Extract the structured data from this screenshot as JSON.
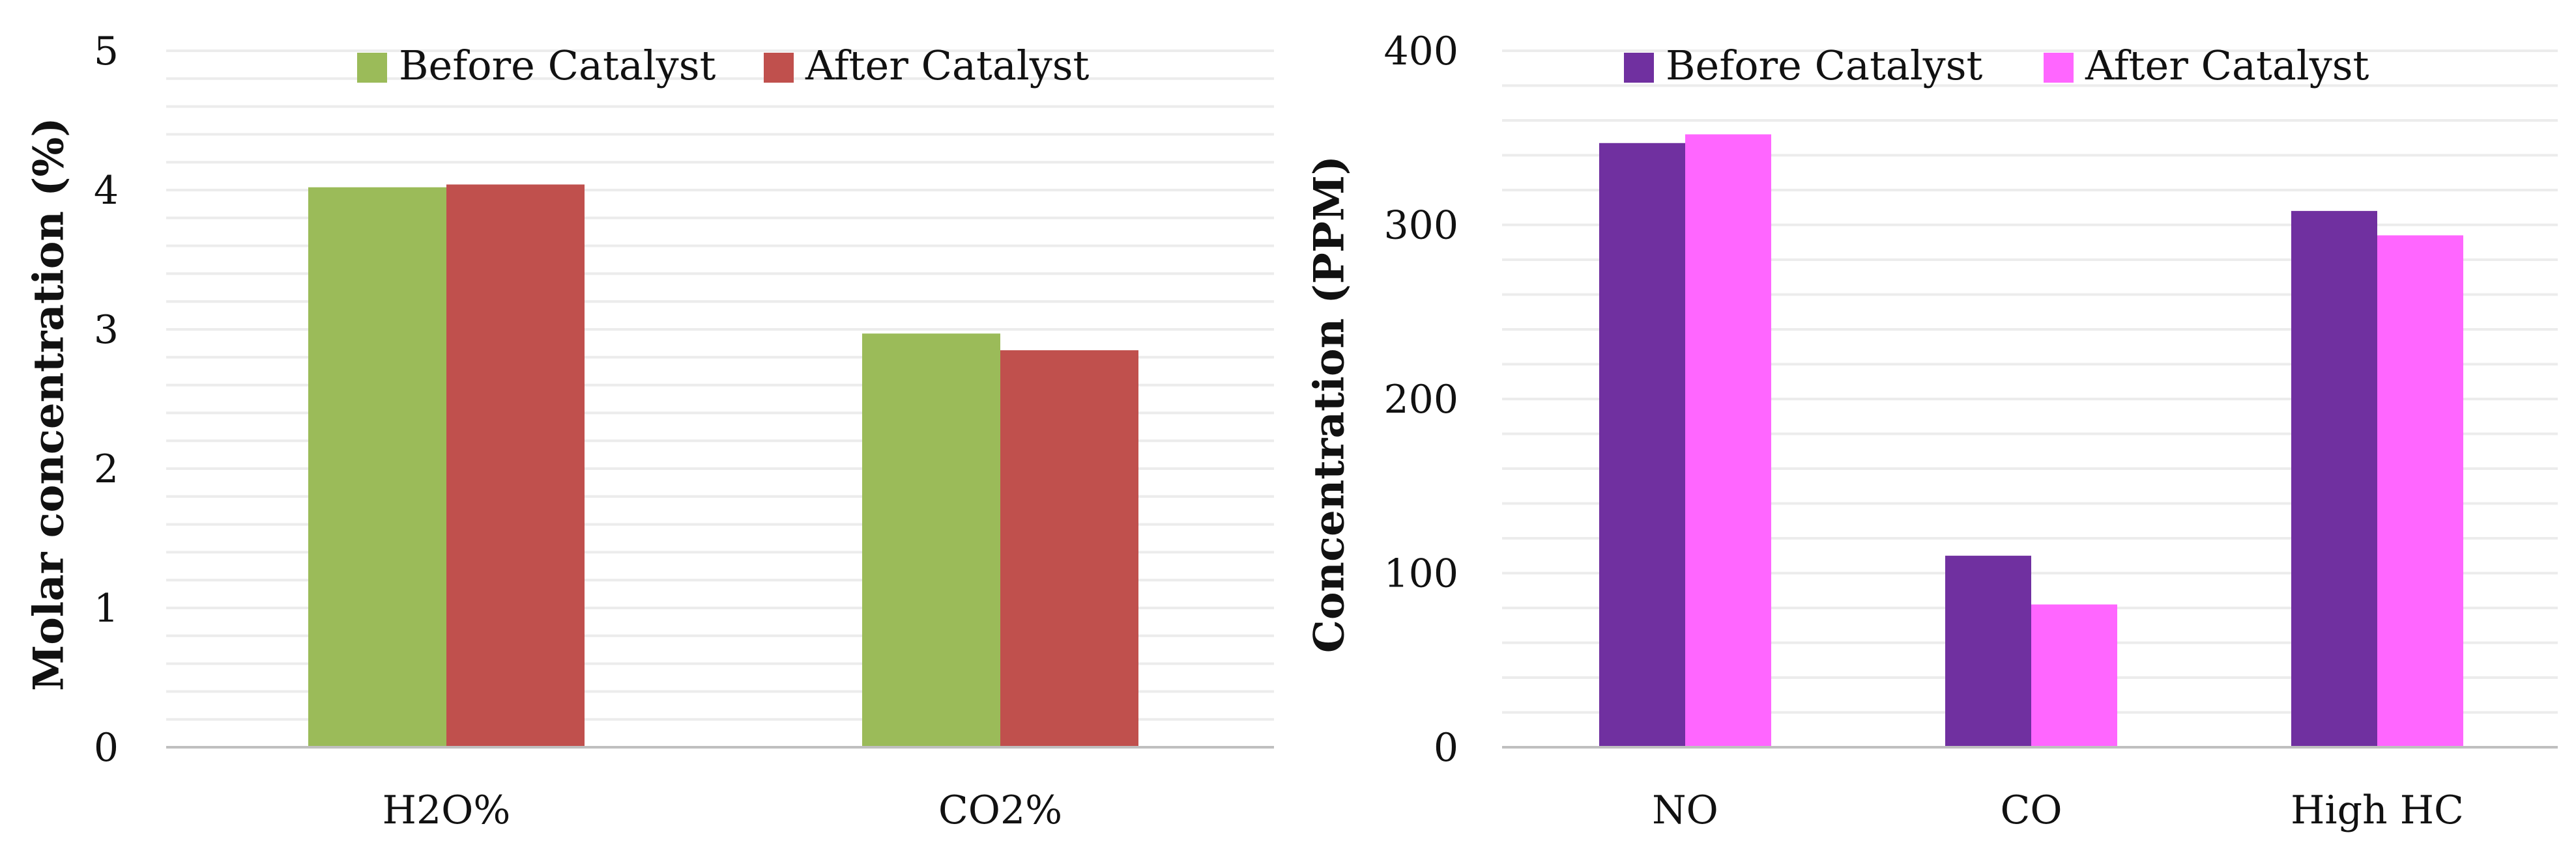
{
  "chart_data": [
    {
      "type": "bar",
      "title": "",
      "xlabel": "",
      "ylabel": "Molar concentration (%)",
      "ylim": [
        0,
        5
      ],
      "yticks": [
        "0",
        "1",
        "2",
        "3",
        "4",
        "5"
      ],
      "minor_grid_step": 0.2,
      "legend_position": "top-center",
      "categories": [
        "H2O%",
        "CO2%"
      ],
      "series": [
        {
          "name": "Before Catalyst",
          "color": "#9bbb59",
          "values": [
            4.02,
            2.97
          ]
        },
        {
          "name": "After Catalyst",
          "color": "#c0504d",
          "values": [
            4.04,
            2.85
          ]
        }
      ]
    },
    {
      "type": "bar",
      "title": "",
      "xlabel": "",
      "ylabel": "Concentration (PPM)",
      "ylim": [
        0,
        400
      ],
      "yticks": [
        "0",
        "100",
        "200",
        "300",
        "400"
      ],
      "minor_grid_step": 20,
      "legend_position": "top-center",
      "categories": [
        "NO",
        "CO",
        "High HC"
      ],
      "series": [
        {
          "name": "Before Catalyst",
          "color": "#7030a0",
          "values": [
            347,
            110,
            308
          ]
        },
        {
          "name": "After Catalyst",
          "color": "#ff66ff",
          "values": [
            352,
            82,
            294
          ]
        }
      ]
    }
  ],
  "colors": {
    "grid": "#ececec",
    "axis": "#bfbfbf",
    "text": "#111111"
  }
}
